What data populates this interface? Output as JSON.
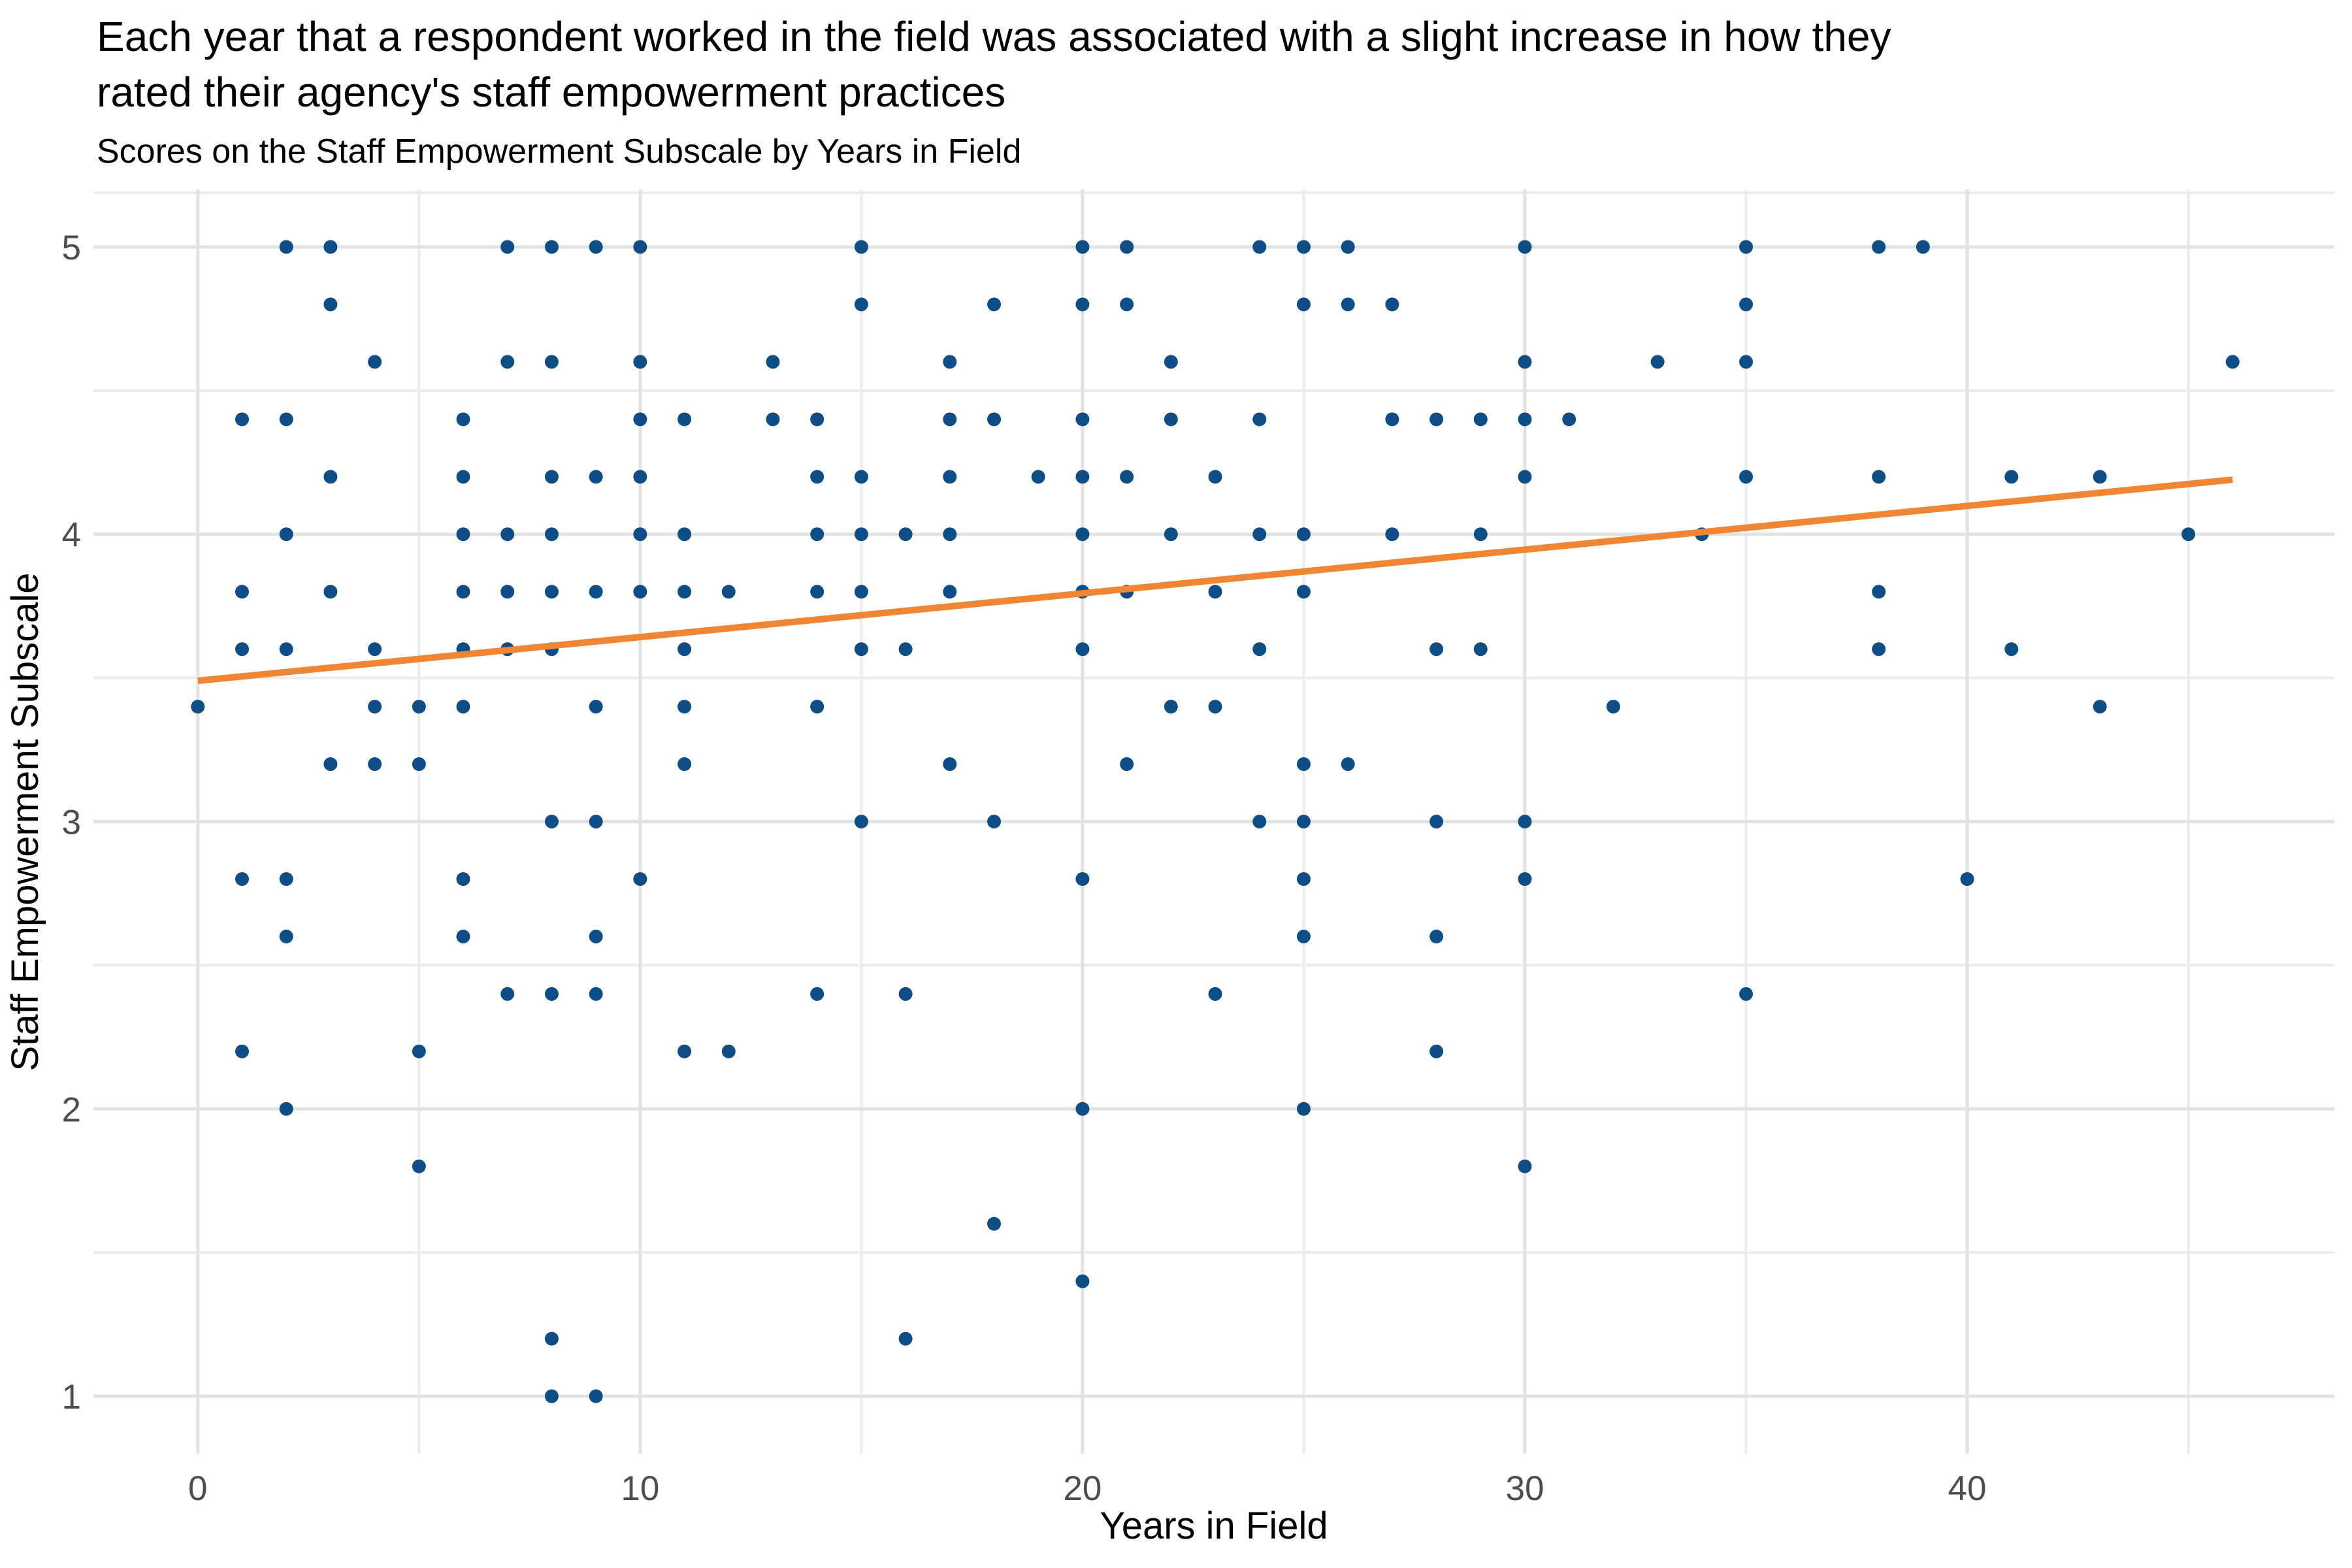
{
  "chart_data": {
    "type": "scatter",
    "title_line1": "Each year that a respondent worked in the field was associated with a slight increase in how they",
    "title_line2": "rated their agency's staff empowerment practices",
    "subtitle": "Scores on the Staff Empowerment Subscale by Years in Field",
    "xlabel": "Years in Field",
    "ylabel": "Staff Empowerment Subscale",
    "x_ticks": [
      0,
      10,
      20,
      30,
      40
    ],
    "x_minor_ticks": [
      5,
      15,
      25,
      35,
      45
    ],
    "y_ticks": [
      1,
      2,
      3,
      4,
      5
    ],
    "y_minor_ticks": [
      1.5,
      2.5,
      3.5,
      4.5
    ],
    "xlim": [
      -2.36,
      48.3
    ],
    "ylim": [
      0.8,
      5.2
    ],
    "grid": true,
    "legend_position": "none",
    "point_color": "#0E4D85",
    "trend_color": "#F08634",
    "grid_major_color": "#E2E2E2",
    "grid_minor_color": "#ECECEC",
    "axis_text_color": "#4D4D4D",
    "trend": {
      "x1": 0,
      "y1": 3.49,
      "x2": 46,
      "y2": 4.19
    },
    "points": [
      [
        2,
        5
      ],
      [
        3,
        5
      ],
      [
        7,
        5
      ],
      [
        8,
        5
      ],
      [
        9,
        5
      ],
      [
        10,
        5
      ],
      [
        15,
        5
      ],
      [
        20,
        5
      ],
      [
        21,
        5
      ],
      [
        24,
        5
      ],
      [
        25,
        5
      ],
      [
        26,
        5
      ],
      [
        30,
        5
      ],
      [
        35,
        5
      ],
      [
        38,
        5
      ],
      [
        39,
        5
      ],
      [
        3,
        4.8
      ],
      [
        15,
        4.8
      ],
      [
        18,
        4.8
      ],
      [
        20,
        4.8
      ],
      [
        21,
        4.8
      ],
      [
        25,
        4.8
      ],
      [
        26,
        4.8
      ],
      [
        27,
        4.8
      ],
      [
        35,
        4.8
      ],
      [
        4,
        4.6
      ],
      [
        7,
        4.6
      ],
      [
        8,
        4.6
      ],
      [
        10,
        4.6
      ],
      [
        13,
        4.6
      ],
      [
        17,
        4.6
      ],
      [
        22,
        4.6
      ],
      [
        30,
        4.6
      ],
      [
        33,
        4.6
      ],
      [
        35,
        4.6
      ],
      [
        46,
        4.6
      ],
      [
        1,
        4.4
      ],
      [
        2,
        4.4
      ],
      [
        6,
        4.4
      ],
      [
        10,
        4.4
      ],
      [
        11,
        4.4
      ],
      [
        13,
        4.4
      ],
      [
        14,
        4.4
      ],
      [
        17,
        4.4
      ],
      [
        18,
        4.4
      ],
      [
        20,
        4.4
      ],
      [
        22,
        4.4
      ],
      [
        24,
        4.4
      ],
      [
        27,
        4.4
      ],
      [
        28,
        4.4
      ],
      [
        29,
        4.4
      ],
      [
        30,
        4.4
      ],
      [
        31,
        4.4
      ],
      [
        3,
        4.2
      ],
      [
        6,
        4.2
      ],
      [
        8,
        4.2
      ],
      [
        9,
        4.2
      ],
      [
        10,
        4.2
      ],
      [
        14,
        4.2
      ],
      [
        15,
        4.2
      ],
      [
        17,
        4.2
      ],
      [
        19,
        4.2
      ],
      [
        20,
        4.2
      ],
      [
        21,
        4.2
      ],
      [
        23,
        4.2
      ],
      [
        30,
        4.2
      ],
      [
        35,
        4.2
      ],
      [
        38,
        4.2
      ],
      [
        41,
        4.2
      ],
      [
        43,
        4.2
      ],
      [
        2,
        4
      ],
      [
        6,
        4
      ],
      [
        7,
        4
      ],
      [
        8,
        4
      ],
      [
        10,
        4
      ],
      [
        11,
        4
      ],
      [
        14,
        4
      ],
      [
        15,
        4
      ],
      [
        16,
        4
      ],
      [
        17,
        4
      ],
      [
        20,
        4
      ],
      [
        22,
        4
      ],
      [
        24,
        4
      ],
      [
        25,
        4
      ],
      [
        27,
        4
      ],
      [
        29,
        4
      ],
      [
        34,
        4
      ],
      [
        45,
        4
      ],
      [
        1,
        3.8
      ],
      [
        3,
        3.8
      ],
      [
        6,
        3.8
      ],
      [
        7,
        3.8
      ],
      [
        8,
        3.8
      ],
      [
        9,
        3.8
      ],
      [
        10,
        3.8
      ],
      [
        11,
        3.8
      ],
      [
        12,
        3.8
      ],
      [
        14,
        3.8
      ],
      [
        15,
        3.8
      ],
      [
        17,
        3.8
      ],
      [
        20,
        3.8
      ],
      [
        21,
        3.8
      ],
      [
        23,
        3.8
      ],
      [
        25,
        3.8
      ],
      [
        38,
        3.8
      ],
      [
        1,
        3.6
      ],
      [
        2,
        3.6
      ],
      [
        4,
        3.6
      ],
      [
        6,
        3.6
      ],
      [
        7,
        3.6
      ],
      [
        8,
        3.6
      ],
      [
        11,
        3.6
      ],
      [
        15,
        3.6
      ],
      [
        16,
        3.6
      ],
      [
        20,
        3.6
      ],
      [
        24,
        3.6
      ],
      [
        28,
        3.6
      ],
      [
        29,
        3.6
      ],
      [
        38,
        3.6
      ],
      [
        41,
        3.6
      ],
      [
        0,
        3.4
      ],
      [
        4,
        3.4
      ],
      [
        5,
        3.4
      ],
      [
        6,
        3.4
      ],
      [
        9,
        3.4
      ],
      [
        11,
        3.4
      ],
      [
        14,
        3.4
      ],
      [
        22,
        3.4
      ],
      [
        23,
        3.4
      ],
      [
        32,
        3.4
      ],
      [
        43,
        3.4
      ],
      [
        3,
        3.2
      ],
      [
        4,
        3.2
      ],
      [
        5,
        3.2
      ],
      [
        11,
        3.2
      ],
      [
        17,
        3.2
      ],
      [
        21,
        3.2
      ],
      [
        25,
        3.2
      ],
      [
        26,
        3.2
      ],
      [
        8,
        3
      ],
      [
        9,
        3
      ],
      [
        15,
        3
      ],
      [
        18,
        3
      ],
      [
        24,
        3
      ],
      [
        25,
        3
      ],
      [
        28,
        3
      ],
      [
        30,
        3
      ],
      [
        1,
        2.8
      ],
      [
        2,
        2.8
      ],
      [
        6,
        2.8
      ],
      [
        10,
        2.8
      ],
      [
        20,
        2.8
      ],
      [
        25,
        2.8
      ],
      [
        30,
        2.8
      ],
      [
        40,
        2.8
      ],
      [
        2,
        2.6
      ],
      [
        6,
        2.6
      ],
      [
        9,
        2.6
      ],
      [
        25,
        2.6
      ],
      [
        28,
        2.6
      ],
      [
        7,
        2.4
      ],
      [
        8,
        2.4
      ],
      [
        9,
        2.4
      ],
      [
        14,
        2.4
      ],
      [
        16,
        2.4
      ],
      [
        23,
        2.4
      ],
      [
        35,
        2.4
      ],
      [
        1,
        2.2
      ],
      [
        5,
        2.2
      ],
      [
        11,
        2.2
      ],
      [
        12,
        2.2
      ],
      [
        28,
        2.2
      ],
      [
        2,
        2
      ],
      [
        20,
        2
      ],
      [
        25,
        2
      ],
      [
        5,
        1.8
      ],
      [
        30,
        1.8
      ],
      [
        18,
        1.6
      ],
      [
        20,
        1.4
      ],
      [
        8,
        1.2
      ],
      [
        16,
        1.2
      ],
      [
        8,
        1
      ],
      [
        9,
        1
      ]
    ]
  }
}
